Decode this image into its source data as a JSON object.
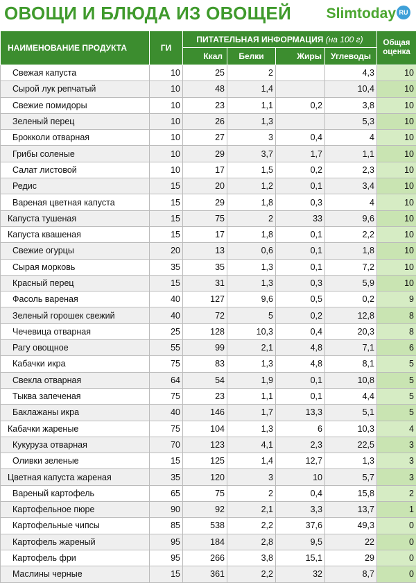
{
  "header": {
    "title": "ОВОЩИ И БЛЮДА ИЗ ОВОЩЕЙ",
    "logo_text": "Slimtoday",
    "logo_badge": "RU"
  },
  "columns": {
    "name": "НАИМЕНОВАНИЕ ПРОДУКТА",
    "gi": "ГИ",
    "nutrition": "ПИТАТЕЛЬНАЯ ИНФОРМАЦИЯ",
    "per100": "(на 100 г)",
    "score": "Общая оценка",
    "kcal": "Ккал",
    "protein": "Белки",
    "fat": "Жиры",
    "carbs": "Углеводы"
  },
  "rows": [
    {
      "name": "Свежая капуста",
      "gi": "10",
      "kcal": "25",
      "protein": "2",
      "fat": "",
      "carbs": "4,3",
      "score": "10"
    },
    {
      "name": "Сырой лук репчатый",
      "gi": "10",
      "kcal": "48",
      "protein": "1,4",
      "fat": "",
      "carbs": "10,4",
      "score": "10"
    },
    {
      "name": "Свежие помидоры",
      "gi": "10",
      "kcal": "23",
      "protein": "1,1",
      "fat": "0,2",
      "carbs": "3,8",
      "score": "10"
    },
    {
      "name": "Зеленый перец",
      "gi": "10",
      "kcal": "26",
      "protein": "1,3",
      "fat": "",
      "carbs": "5,3",
      "score": "10"
    },
    {
      "name": "Брокколи отварная",
      "gi": "10",
      "kcal": "27",
      "protein": "3",
      "fat": "0,4",
      "carbs": "4",
      "score": "10"
    },
    {
      "name": "Грибы соленые",
      "gi": "10",
      "kcal": "29",
      "protein": "3,7",
      "fat": "1,7",
      "carbs": "1,1",
      "score": "10"
    },
    {
      "name": "Салат листовой",
      "gi": "10",
      "kcal": "17",
      "protein": "1,5",
      "fat": "0,2",
      "carbs": "2,3",
      "score": "10"
    },
    {
      "name": "Редис",
      "gi": "15",
      "kcal": "20",
      "protein": "1,2",
      "fat": "0,1",
      "carbs": "3,4",
      "score": "10"
    },
    {
      "name": "Вареная цветная капуста",
      "gi": "15",
      "kcal": "29",
      "protein": "1,8",
      "fat": "0,3",
      "carbs": "4",
      "score": "10"
    },
    {
      "name": "Капуста тушеная",
      "gi": "15",
      "kcal": "75",
      "protein": "2",
      "fat": "33",
      "carbs": "9,6",
      "score": "10",
      "indent": true
    },
    {
      "name": "Капуста квашеная",
      "gi": "15",
      "kcal": "17",
      "protein": "1,8",
      "fat": "0,1",
      "carbs": "2,2",
      "score": "10",
      "indent": true
    },
    {
      "name": "Свежие огурцы",
      "gi": "20",
      "kcal": "13",
      "protein": "0,6",
      "fat": "0,1",
      "carbs": "1,8",
      "score": "10"
    },
    {
      "name": "Сырая морковь",
      "gi": "35",
      "kcal": "35",
      "protein": "1,3",
      "fat": "0,1",
      "carbs": "7,2",
      "score": "10"
    },
    {
      "name": "Красный перец",
      "gi": "15",
      "kcal": "31",
      "protein": "1,3",
      "fat": "0,3",
      "carbs": "5,9",
      "score": "10"
    },
    {
      "name": "Фасоль вареная",
      "gi": "40",
      "kcal": "127",
      "protein": "9,6",
      "fat": "0,5",
      "carbs": "0,2",
      "score": "9"
    },
    {
      "name": "Зеленый горошек свежий",
      "gi": "40",
      "kcal": "72",
      "protein": "5",
      "fat": "0,2",
      "carbs": "12,8",
      "score": "8"
    },
    {
      "name": "Чечевица отварная",
      "gi": "25",
      "kcal": "128",
      "protein": "10,3",
      "fat": "0,4",
      "carbs": "20,3",
      "score": "8"
    },
    {
      "name": "Рагу овощное",
      "gi": "55",
      "kcal": "99",
      "protein": "2,1",
      "fat": "4,8",
      "carbs": "7,1",
      "score": "6"
    },
    {
      "name": "Кабачки икра",
      "gi": "75",
      "kcal": "83",
      "protein": "1,3",
      "fat": "4,8",
      "carbs": "8,1",
      "score": "5"
    },
    {
      "name": "Свекла отварная",
      "gi": "64",
      "kcal": "54",
      "protein": "1,9",
      "fat": "0,1",
      "carbs": "10,8",
      "score": "5"
    },
    {
      "name": "Тыква запеченая",
      "gi": "75",
      "kcal": "23",
      "protein": "1,1",
      "fat": "0,1",
      "carbs": "4,4",
      "score": "5"
    },
    {
      "name": "Баклажаны икра",
      "gi": "40",
      "kcal": "146",
      "protein": "1,7",
      "fat": "13,3",
      "carbs": "5,1",
      "score": "5"
    },
    {
      "name": "Кабачки жареные",
      "gi": "75",
      "kcal": "104",
      "protein": "1,3",
      "fat": "6",
      "carbs": "10,3",
      "score": "4",
      "indent": true
    },
    {
      "name": "Кукуруза отварная",
      "gi": "70",
      "kcal": "123",
      "protein": "4,1",
      "fat": "2,3",
      "carbs": "22,5",
      "score": "3"
    },
    {
      "name": "Оливки зеленые",
      "gi": "15",
      "kcal": "125",
      "protein": "1,4",
      "fat": "12,7",
      "carbs": "1,3",
      "score": "3"
    },
    {
      "name": "Цветная капуста жареная",
      "gi": "35",
      "kcal": "120",
      "protein": "3",
      "fat": "10",
      "carbs": "5,7",
      "score": "3",
      "indent": true
    },
    {
      "name": "Вареный картофель",
      "gi": "65",
      "kcal": "75",
      "protein": "2",
      "fat": "0,4",
      "carbs": "15,8",
      "score": "2"
    },
    {
      "name": "Картофельное пюре",
      "gi": "90",
      "kcal": "92",
      "protein": "2,1",
      "fat": "3,3",
      "carbs": "13,7",
      "score": "1"
    },
    {
      "name": "Картофельные чипсы",
      "gi": "85",
      "kcal": "538",
      "protein": "2,2",
      "fat": "37,6",
      "carbs": "49,3",
      "score": "0"
    },
    {
      "name": "Картофель жареный",
      "gi": "95",
      "kcal": "184",
      "protein": "2,8",
      "fat": "9,5",
      "carbs": "22",
      "score": "0"
    },
    {
      "name": "Картофель фри",
      "gi": "95",
      "kcal": "266",
      "protein": "3,8",
      "fat": "15,1",
      "carbs": "29",
      "score": "0"
    },
    {
      "name": "Маслины черные",
      "gi": "15",
      "kcal": "361",
      "protein": "2,2",
      "fat": "32",
      "carbs": "8,7",
      "score": "0"
    }
  ]
}
